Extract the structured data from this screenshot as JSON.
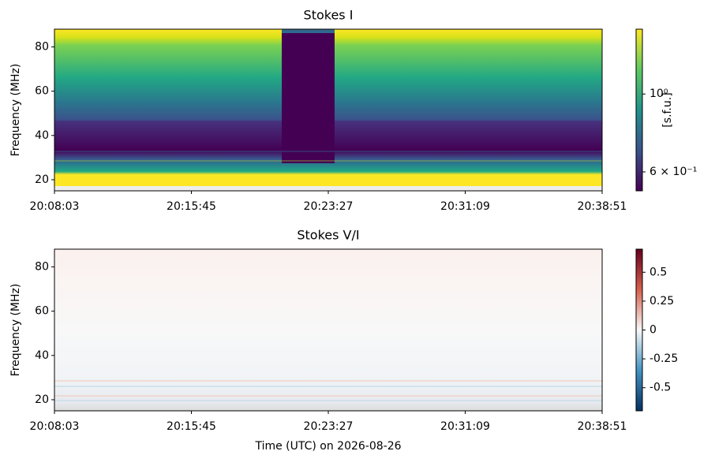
{
  "chart_data": [
    {
      "type": "heatmap",
      "title": "Stokes I",
      "ylabel": "Frequency (MHz)",
      "xticks": [
        "20:08:03",
        "20:15:45",
        "20:23:27",
        "20:31:09",
        "20:38:51"
      ],
      "ylim": [
        15,
        88
      ],
      "yticks": [
        20,
        40,
        60,
        80
      ],
      "colorbar": {
        "label": "[s.f.u.]",
        "colormap": "viridis",
        "log": true,
        "lim": [
          0.53,
          1.53
        ],
        "ticks": [
          {
            "value": 1,
            "label": "10⁰"
          },
          {
            "value": 0.6,
            "label": "6 × 10⁻¹"
          }
        ]
      }
    },
    {
      "type": "heatmap",
      "title": "Stokes V/I",
      "ylabel": "Frequency (MHz)",
      "xlabel": "Time (UTC) on 2026-08-26",
      "xticks": [
        "20:08:03",
        "20:15:45",
        "20:23:27",
        "20:31:09",
        "20:38:51"
      ],
      "ylim": [
        15,
        88
      ],
      "yticks": [
        20,
        40,
        60,
        80
      ],
      "colorbar": {
        "colormap": "RdBu_r",
        "log": false,
        "lim": [
          -0.7,
          0.7
        ],
        "ticks": [
          0.5,
          0.25,
          0,
          -0.25,
          -0.5
        ]
      }
    }
  ]
}
